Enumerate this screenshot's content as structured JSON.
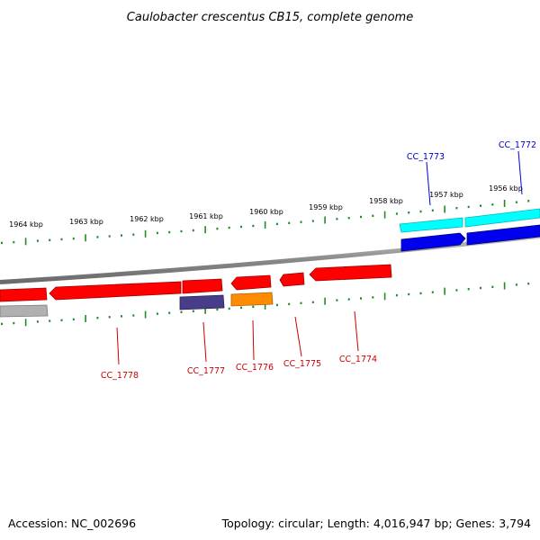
{
  "title": "Caulobacter crescentus CB15, complete genome",
  "footer": {
    "accession": "Accession: NC_002696",
    "summary": "Topology: circular; Length: 4,016,947 bp; Genes: 3,794"
  },
  "colors": {
    "backbone": "#808080",
    "forward_cds": "#00ffff",
    "forward_gene": "#0000ff",
    "reverse_cds": "#ff0000",
    "reverse_rna": "#ff8c00",
    "reverse_other": "#483d8b",
    "reverse_misc": "#b0b0b0",
    "tick": "#228b22",
    "forward_label": "#0000cc",
    "reverse_label": "#cc0000"
  },
  "scale_labels": [
    "1964 kbp",
    "1963 kbp",
    "1962 kbp",
    "1961 kbp",
    "1960 kbp",
    "1959 kbp",
    "1958 kbp",
    "1957 kbp",
    "1956 kbp"
  ],
  "gene_labels": {
    "forward": [
      "CC_1773",
      "CC_1772"
    ],
    "reverse": [
      "CC_1778",
      "CC_1777",
      "CC_1776",
      "CC_1775",
      "CC_1774"
    ]
  }
}
